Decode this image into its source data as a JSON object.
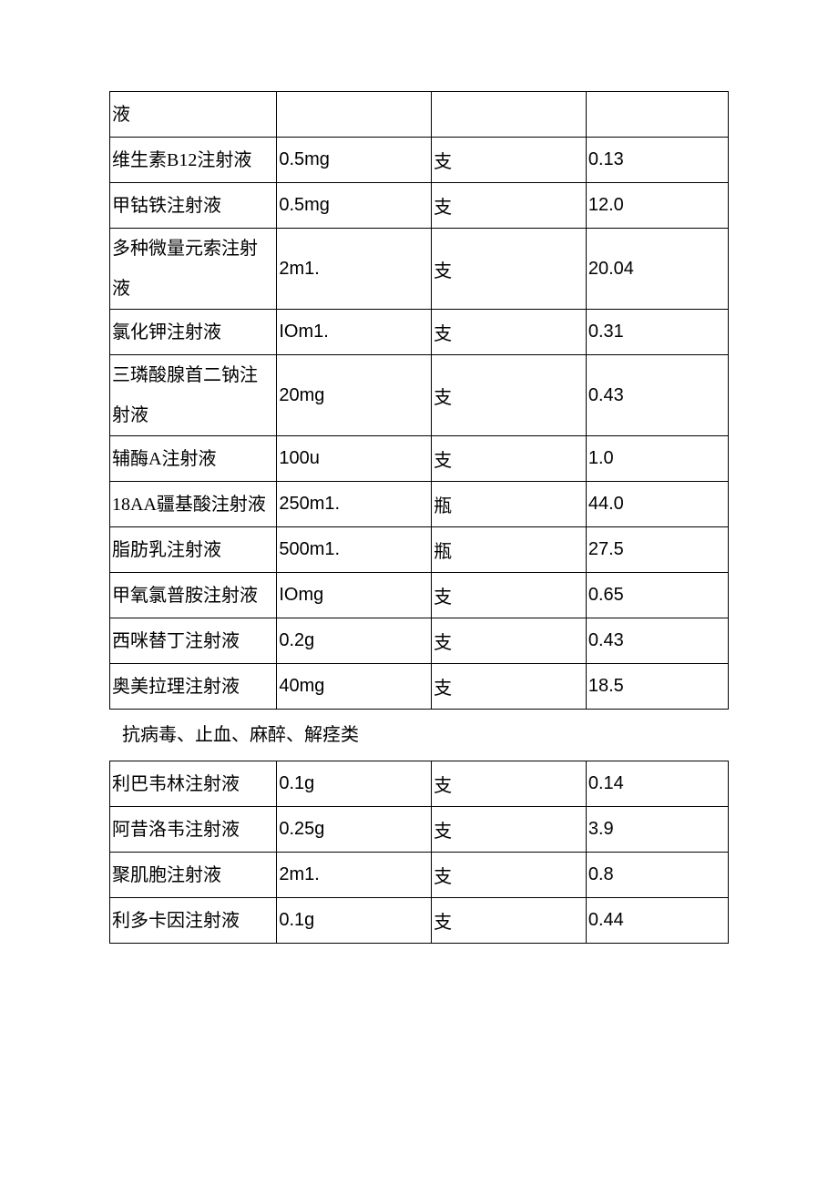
{
  "table1": {
    "columns": [
      "name",
      "spec",
      "unit",
      "price"
    ],
    "col_widths_pct": [
      27,
      25,
      25,
      23
    ],
    "border_color": "#000000",
    "background_color": "#ffffff",
    "font_size_pt": 15,
    "rows": [
      {
        "name": "液",
        "spec": "",
        "unit": "",
        "price": ""
      },
      {
        "name": "维生素B12注射液",
        "spec": "0.5mg",
        "unit": "支",
        "price": "0.13"
      },
      {
        "name": "甲钴铁注射液",
        "spec": "0.5mg",
        "unit": "支",
        "price": "12.0"
      },
      {
        "name": "多种微量元索注射液",
        "spec": "2m1.",
        "unit": "支",
        "price": "20.04"
      },
      {
        "name": "氯化钾注射液",
        "spec": "IOm1.",
        "unit": "支",
        "price": "0.31"
      },
      {
        "name": "三璘酸腺首二钠注射液",
        "spec": "20mg",
        "unit": "支",
        "price": "0.43"
      },
      {
        "name": "辅酶A注射液",
        "spec": "100u",
        "unit": "支",
        "price": "1.0"
      },
      {
        "name": "18AA疆基酸注射液",
        "spec": "250m1.",
        "unit": "瓶",
        "price": "44.0"
      },
      {
        "name": "脂肪乳注射液",
        "spec": "500m1.",
        "unit": "瓶",
        "price": "27.5"
      },
      {
        "name": "甲氧氯普胺注射液",
        "spec": "IOmg",
        "unit": "支",
        "price": "0.65"
      },
      {
        "name": "西咪替丁注射液",
        "spec": "0.2g",
        "unit": "支",
        "price": "0.43"
      },
      {
        "name": "奥美拉理注射液",
        "spec": "40mg",
        "unit": "支",
        "price": "18.5"
      }
    ]
  },
  "section_label": "抗病毒、止血、麻醉、解痉类",
  "table2": {
    "columns": [
      "name",
      "spec",
      "unit",
      "price"
    ],
    "col_widths_pct": [
      27,
      25,
      25,
      23
    ],
    "border_color": "#000000",
    "background_color": "#ffffff",
    "font_size_pt": 15,
    "rows": [
      {
        "name": "利巴韦林注射液",
        "spec": "0.1g",
        "unit": "支",
        "price": "0.14"
      },
      {
        "name": "阿昔洛韦注射液",
        "spec": "0.25g",
        "unit": "支",
        "price": "3.9"
      },
      {
        "name": "聚肌胞注射液",
        "spec": "2m1.",
        "unit": "支",
        "price": "0.8"
      },
      {
        "name": "利多卡因注射液",
        "spec": "0.1g",
        "unit": "支",
        "price": "0.44"
      }
    ]
  }
}
